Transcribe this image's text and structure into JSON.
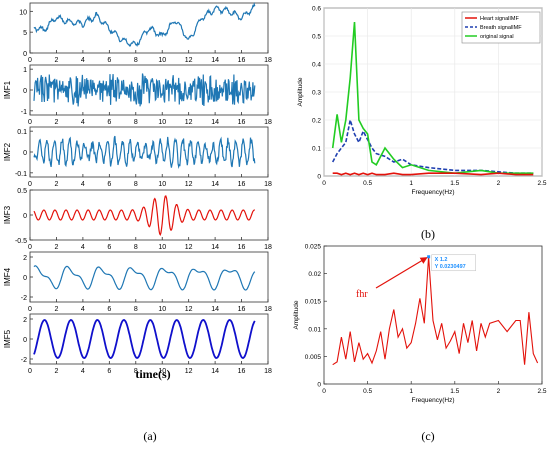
{
  "panel_labels": {
    "a": "(a)",
    "b": "(b)",
    "c": "(c)"
  },
  "chart_data": [
    {
      "type": "line",
      "panel": "a",
      "xlabel": "time(s)",
      "x_ticks": [
        0,
        2,
        4,
        6,
        8,
        10,
        12,
        14,
        16,
        18
      ],
      "xlim": [
        0,
        18
      ],
      "subplots": [
        {
          "ylabel": "",
          "ylim": [
            0,
            12
          ],
          "y_ticks": [
            0,
            5,
            10
          ],
          "color": "#1f77b4",
          "x": [
            0,
            1,
            2,
            3,
            4,
            5,
            6,
            7,
            8,
            9,
            10,
            11,
            12,
            13,
            14,
            15,
            16,
            17
          ],
          "values": [
            6.5,
            5.5,
            8.5,
            7.5,
            7,
            9,
            6,
            3,
            2,
            6,
            4,
            8,
            3,
            8.5,
            10.5,
            10,
            8.5,
            11
          ]
        },
        {
          "ylabel": "IMF1",
          "ylim": [
            -1.2,
            1.2
          ],
          "y_ticks": [
            -1,
            0,
            1
          ],
          "color": "#1f77b4",
          "style": "dense noise, amplitude ~0.8"
        },
        {
          "ylabel": "IMF2",
          "ylim": [
            -0.12,
            0.12
          ],
          "y_ticks": [
            -0.1,
            0,
            0.1
          ],
          "color": "#1f77b4",
          "style": "oscillation, amplitude ~0.05-0.1"
        },
        {
          "ylabel": "IMF3",
          "ylim": [
            -0.5,
            0.5
          ],
          "y_ticks": [
            -0.5,
            0,
            0.5
          ],
          "color": "#e3120b",
          "style": "oscillation with burst near t=10"
        },
        {
          "ylabel": "IMF4",
          "ylim": [
            -2.5,
            2.5
          ],
          "y_ticks": [
            -2,
            0,
            2
          ],
          "color": "#1f77b4",
          "style": "slow oscillation"
        },
        {
          "ylabel": "IMF5",
          "ylim": [
            -2.5,
            2.5
          ],
          "y_ticks": [
            -2,
            0,
            2
          ],
          "color": "#1010cc",
          "style": "sinusoid, period ~2 s, amplitude ~2"
        }
      ]
    },
    {
      "type": "line",
      "panel": "b",
      "xlabel": "Frequency(Hz)",
      "ylabel": "Amplitude",
      "xlim": [
        0,
        2.5
      ],
      "ylim": [
        0,
        0.6
      ],
      "x_ticks": [
        0,
        0.5,
        1,
        1.5,
        2,
        2.5
      ],
      "y_ticks": [
        0,
        0.1,
        0.2,
        0.3,
        0.4,
        0.5,
        0.6
      ],
      "legend_position": "top-right",
      "x": [
        0.1,
        0.15,
        0.2,
        0.25,
        0.3,
        0.35,
        0.4,
        0.45,
        0.5,
        0.55,
        0.6,
        0.7,
        0.8,
        0.9,
        1.0,
        1.2,
        1.5,
        1.8,
        2.0,
        2.2,
        2.4
      ],
      "series": [
        {
          "name": "Heart signalIMF",
          "color": "#e3120b",
          "style": "solid",
          "values": [
            0.01,
            0.01,
            0.005,
            0.01,
            0.005,
            0.01,
            0.005,
            0.01,
            0.005,
            0.01,
            0.005,
            0.005,
            0.01,
            0.005,
            0.005,
            0.01,
            0.01,
            0.005,
            0.01,
            0.005,
            0.005
          ]
        },
        {
          "name": "Breath signalIMF",
          "color": "#1f3fb0",
          "style": "dashed",
          "values": [
            0.05,
            0.08,
            0.1,
            0.12,
            0.2,
            0.15,
            0.12,
            0.16,
            0.13,
            0.1,
            0.08,
            0.07,
            0.05,
            0.06,
            0.04,
            0.03,
            0.02,
            0.02,
            0.015,
            0.01,
            0.01
          ]
        },
        {
          "name": "original signal",
          "color": "#22cc22",
          "style": "solid",
          "values": [
            0.1,
            0.22,
            0.12,
            0.2,
            0.35,
            0.55,
            0.2,
            0.17,
            0.15,
            0.05,
            0.04,
            0.1,
            0.06,
            0.03,
            0.04,
            0.02,
            0.01,
            0.02,
            0.01,
            0.01,
            0.01
          ]
        }
      ]
    },
    {
      "type": "line",
      "panel": "c",
      "xlabel": "Frequency(Hz)",
      "ylabel": "Amplitude",
      "xlim": [
        0,
        2.5
      ],
      "ylim": [
        0,
        0.025
      ],
      "x_ticks": [
        0,
        0.5,
        1,
        1.5,
        2,
        2.5
      ],
      "y_ticks": [
        0,
        0.005,
        0.01,
        0.015,
        0.02,
        0.025
      ],
      "series": [
        {
          "name": "",
          "color": "#e3120b",
          "x": [
            0.1,
            0.15,
            0.2,
            0.25,
            0.3,
            0.35,
            0.4,
            0.45,
            0.5,
            0.55,
            0.6,
            0.65,
            0.7,
            0.75,
            0.8,
            0.85,
            0.9,
            0.95,
            1.0,
            1.05,
            1.1,
            1.15,
            1.2,
            1.25,
            1.3,
            1.35,
            1.4,
            1.45,
            1.5,
            1.55,
            1.6,
            1.65,
            1.7,
            1.75,
            1.8,
            1.85,
            1.9,
            2.0,
            2.1,
            2.2,
            2.25,
            2.3,
            2.35,
            2.4,
            2.45
          ],
          "values": [
            0.0035,
            0.004,
            0.0085,
            0.0045,
            0.0095,
            0.004,
            0.0075,
            0.0045,
            0.0055,
            0.0038,
            0.006,
            0.0095,
            0.0045,
            0.01,
            0.0135,
            0.0085,
            0.01,
            0.0065,
            0.0075,
            0.011,
            0.0155,
            0.011,
            0.0230497,
            0.0115,
            0.008,
            0.011,
            0.0065,
            0.0078,
            0.0095,
            0.0055,
            0.011,
            0.0075,
            0.0115,
            0.006,
            0.011,
            0.0085,
            0.011,
            0.0115,
            0.0095,
            0.0115,
            0.0115,
            0.0035,
            0.013,
            0.0055,
            0.0038
          ]
        }
      ],
      "annotations": [
        {
          "text": "fhr",
          "color": "#e3120b"
        },
        {
          "x_label": "X 1.2",
          "y_label": "Y 0.0230497",
          "x": 1.2,
          "y": 0.0230497
        }
      ]
    }
  ]
}
